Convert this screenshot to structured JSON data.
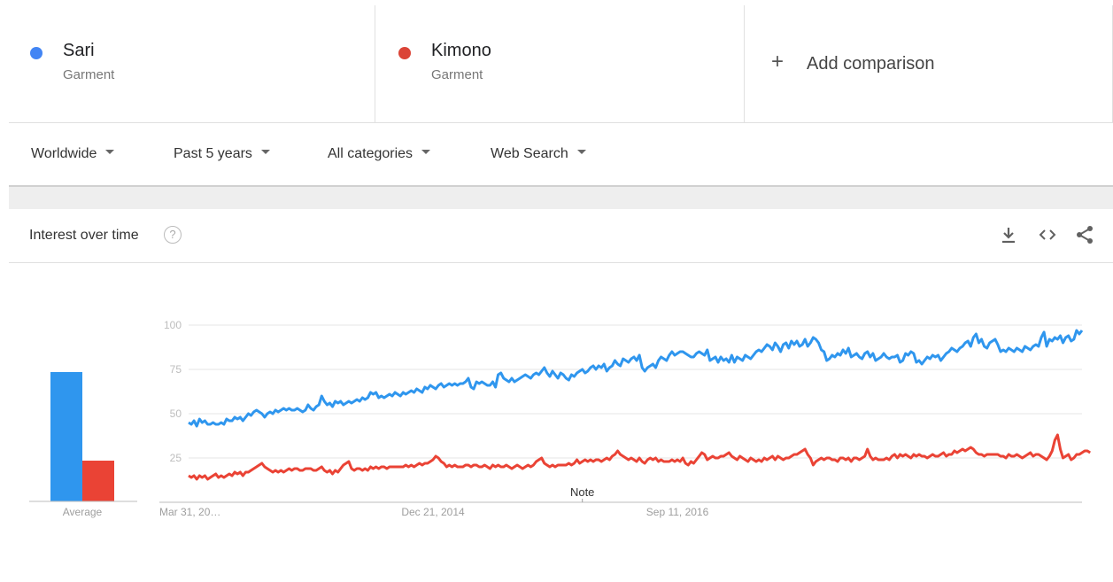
{
  "terms": [
    {
      "name": "Sari",
      "type": "Garment",
      "color": "#4285f4"
    },
    {
      "name": "Kimono",
      "type": "Garment",
      "color": "#db4437"
    }
  ],
  "add_comparison": {
    "plus": "+",
    "label": "Add comparison"
  },
  "filters": {
    "region": "Worldwide",
    "time": "Past 5 years",
    "category": "All categories",
    "property": "Web Search"
  },
  "card": {
    "title": "Interest over time",
    "help": "?",
    "icons": [
      "download-icon",
      "embed-icon",
      "share-icon"
    ]
  },
  "average_label": "Average",
  "note_label": "Note",
  "chart_data": {
    "type": "line",
    "ylim": [
      0,
      100
    ],
    "yticks": [
      100,
      75,
      50,
      25
    ],
    "grid": true,
    "x_tick_labels": [
      {
        "label": "Mar 31, 20…",
        "index": 0
      },
      {
        "label": "Dec 21, 2014",
        "index": 90
      },
      {
        "label": "Sep 11, 2016",
        "index": 180
      }
    ],
    "note_index": 145,
    "averages": [
      {
        "term": "Sari",
        "value": 73
      },
      {
        "term": "Kimono",
        "value": 23
      }
    ],
    "series": [
      {
        "name": "Sari",
        "color": "#2f96ee",
        "values": [
          45,
          44,
          46,
          43,
          47,
          45,
          46,
          44,
          44,
          45,
          44,
          44,
          45,
          44,
          47,
          46,
          46,
          48,
          47,
          48,
          46,
          48,
          50,
          49,
          51,
          52,
          51,
          50,
          48,
          50,
          51,
          50,
          52,
          51,
          52,
          53,
          52,
          53,
          52,
          52,
          53,
          52,
          51,
          52,
          55,
          53,
          52,
          54,
          55,
          60,
          57,
          55,
          56,
          54,
          57,
          56,
          57,
          55,
          56,
          57,
          56,
          57,
          58,
          57,
          59,
          58,
          59,
          62,
          61,
          62,
          59,
          60,
          59,
          60,
          61,
          60,
          62,
          61,
          60,
          62,
          61,
          62,
          63,
          62,
          64,
          63,
          62,
          65,
          64,
          66,
          65,
          64,
          66,
          67,
          65,
          66,
          67,
          66,
          67,
          66,
          67,
          67,
          68,
          70,
          65,
          64,
          68,
          67,
          68,
          67,
          66,
          66,
          68,
          65,
          72,
          73,
          70,
          69,
          68,
          70,
          68,
          69,
          70,
          71,
          72,
          71,
          70,
          72,
          73,
          72,
          74,
          76,
          73,
          71,
          74,
          72,
          70,
          73,
          72,
          70,
          69,
          72,
          71,
          73,
          74,
          75,
          73,
          74,
          76,
          77,
          75,
          77,
          76,
          78,
          74,
          76,
          77,
          80,
          78,
          77,
          81,
          80,
          79,
          81,
          82,
          80,
          83,
          76,
          74,
          76,
          77,
          78,
          76,
          80,
          82,
          81,
          80,
          83,
          85,
          83,
          84,
          85,
          85,
          84,
          83,
          82,
          82,
          84,
          85,
          84,
          83,
          86,
          80,
          81,
          82,
          79,
          82,
          80,
          81,
          79,
          83,
          79,
          82,
          81,
          80,
          83,
          82,
          81,
          83,
          85,
          86,
          85,
          87,
          89,
          88,
          86,
          90,
          88,
          85,
          89,
          90,
          87,
          91,
          89,
          91,
          88,
          89,
          92,
          88,
          90,
          93,
          92,
          90,
          86,
          85,
          80,
          81,
          83,
          82,
          84,
          83,
          86,
          84,
          87,
          82,
          83,
          84,
          82,
          81,
          84,
          85,
          82,
          84,
          80,
          81,
          82,
          84,
          82,
          81,
          82,
          82,
          83,
          79,
          80,
          84,
          83,
          85,
          84,
          79,
          80,
          78,
          80,
          82,
          81,
          83,
          82,
          83,
          80,
          82,
          84,
          85,
          87,
          86,
          85,
          87,
          88,
          90,
          91,
          88,
          93,
          95,
          90,
          92,
          88,
          87,
          90,
          91,
          92,
          89,
          85,
          86,
          85,
          87,
          86,
          85,
          87,
          86,
          85,
          88,
          87,
          86,
          88,
          89,
          88,
          93,
          96,
          88,
          92,
          91,
          93,
          92,
          94,
          90,
          93,
          94,
          91,
          92,
          97,
          95,
          97
        ]
      },
      {
        "name": "Kimono",
        "color": "#ea4335",
        "values": [
          15,
          14,
          15,
          13,
          15,
          14,
          15,
          13,
          14,
          15,
          16,
          14,
          15,
          14,
          15,
          16,
          15,
          17,
          16,
          17,
          15,
          17,
          17,
          18,
          19,
          20,
          21,
          22,
          20,
          19,
          18,
          17,
          18,
          17,
          18,
          17,
          18,
          19,
          18,
          19,
          19,
          18,
          18,
          19,
          19,
          19,
          18,
          18,
          19,
          20,
          18,
          17,
          18,
          16,
          18,
          17,
          19,
          21,
          22,
          23,
          19,
          18,
          19,
          19,
          18,
          19,
          18,
          20,
          19,
          20,
          19,
          20,
          20,
          19,
          20,
          20,
          20,
          20,
          20,
          20,
          21,
          20,
          21,
          20,
          21,
          22,
          21,
          22,
          22,
          23,
          24,
          26,
          25,
          23,
          22,
          20,
          21,
          20,
          21,
          20,
          20,
          20,
          21,
          21,
          20,
          21,
          21,
          20,
          20,
          21,
          20,
          19,
          21,
          20,
          21,
          20,
          20,
          21,
          20,
          19,
          20,
          21,
          20,
          19,
          20,
          21,
          20,
          21,
          23,
          24,
          25,
          22,
          21,
          20,
          21,
          20,
          21,
          21,
          21,
          21,
          22,
          21,
          22,
          24,
          22,
          23,
          24,
          23,
          24,
          23,
          24,
          24,
          23,
          24,
          25,
          24,
          26,
          27,
          29,
          27,
          26,
          25,
          24,
          25,
          24,
          23,
          25,
          23,
          22,
          24,
          25,
          24,
          25,
          23,
          24,
          23,
          23,
          23,
          24,
          23,
          24,
          23,
          25,
          22,
          21,
          23,
          22,
          24,
          26,
          28,
          27,
          24,
          25,
          26,
          25,
          25,
          26,
          26,
          27,
          28,
          26,
          25,
          24,
          26,
          25,
          24,
          23,
          25,
          24,
          23,
          24,
          23,
          25,
          24,
          25,
          26,
          24,
          26,
          25,
          24,
          25,
          25,
          26,
          27,
          27,
          28,
          29,
          30,
          27,
          25,
          21,
          23,
          24,
          25,
          24,
          25,
          25,
          24,
          24,
          23,
          25,
          25,
          24,
          25,
          23,
          25,
          25,
          24,
          25,
          26,
          30,
          26,
          24,
          25,
          24,
          24,
          24,
          25,
          24,
          26,
          27,
          25,
          27,
          26,
          27,
          26,
          25,
          27,
          26,
          27,
          26,
          26,
          25,
          26,
          27,
          26,
          26,
          27,
          28,
          26,
          27,
          27,
          29,
          28,
          29,
          30,
          29,
          30,
          31,
          30,
          28,
          27,
          27,
          26,
          27,
          27,
          27,
          27,
          27,
          26,
          26,
          25,
          27,
          26,
          26,
          27,
          26,
          25,
          26,
          27,
          28,
          26,
          27,
          27,
          26,
          25,
          24,
          26,
          29,
          35,
          38,
          30,
          25,
          26,
          27,
          24,
          25,
          27,
          27,
          28,
          29,
          29,
          28
        ]
      }
    ]
  }
}
